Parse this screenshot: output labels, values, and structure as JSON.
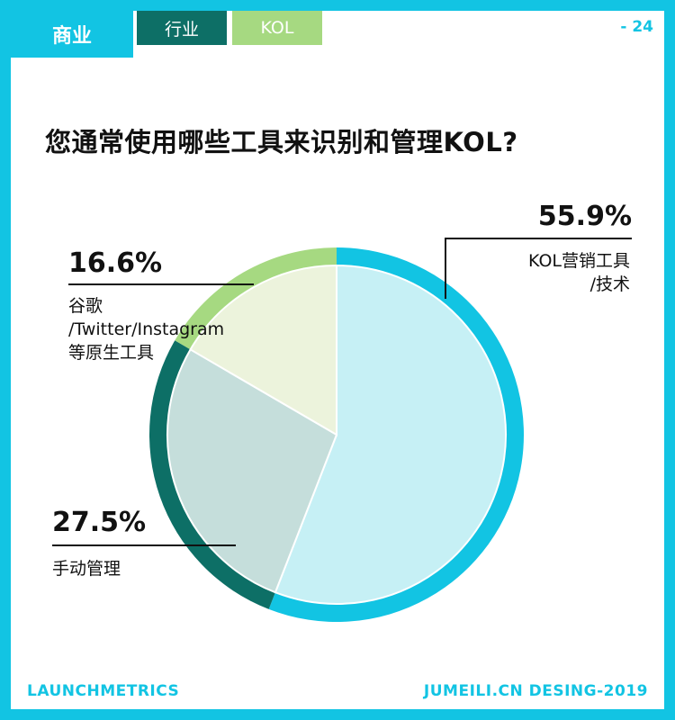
{
  "header": {
    "section": "商业",
    "tab_industry": "行业",
    "tab_kol": "KOL",
    "page_number": "- 24"
  },
  "title": "您通常使用哪些工具来识别和管理KOL?",
  "footer": {
    "left": "LAUNCHMETRICS",
    "right": "JUMEILI.CN DESING-2019"
  },
  "colors": {
    "cyan": "#12c4e3",
    "dark_teal": "#0d6f66",
    "light_green": "#a6d981",
    "fill_cyan": "#c6f0f5",
    "fill_teal": "#c5dedb",
    "fill_green": "#ecf3dc"
  },
  "chart_data": {
    "type": "pie",
    "slices": [
      {
        "label_line1": "KOL营销工具",
        "label_line2": "/技术",
        "value": 55.9,
        "value_label": "55.9%",
        "color": "#12c4e3",
        "fill": "#c6f0f5"
      },
      {
        "label_line1": "手动管理",
        "value": 27.5,
        "value_label": "27.5%",
        "color": "#0d6f66",
        "fill": "#c5dedb"
      },
      {
        "label_line1": "谷歌",
        "label_line2": "/Twitter/Instagram",
        "label_line3": "等原生工具",
        "value": 16.6,
        "value_label": "16.6%",
        "color": "#a6d981",
        "fill": "#ecf3dc"
      }
    ]
  }
}
